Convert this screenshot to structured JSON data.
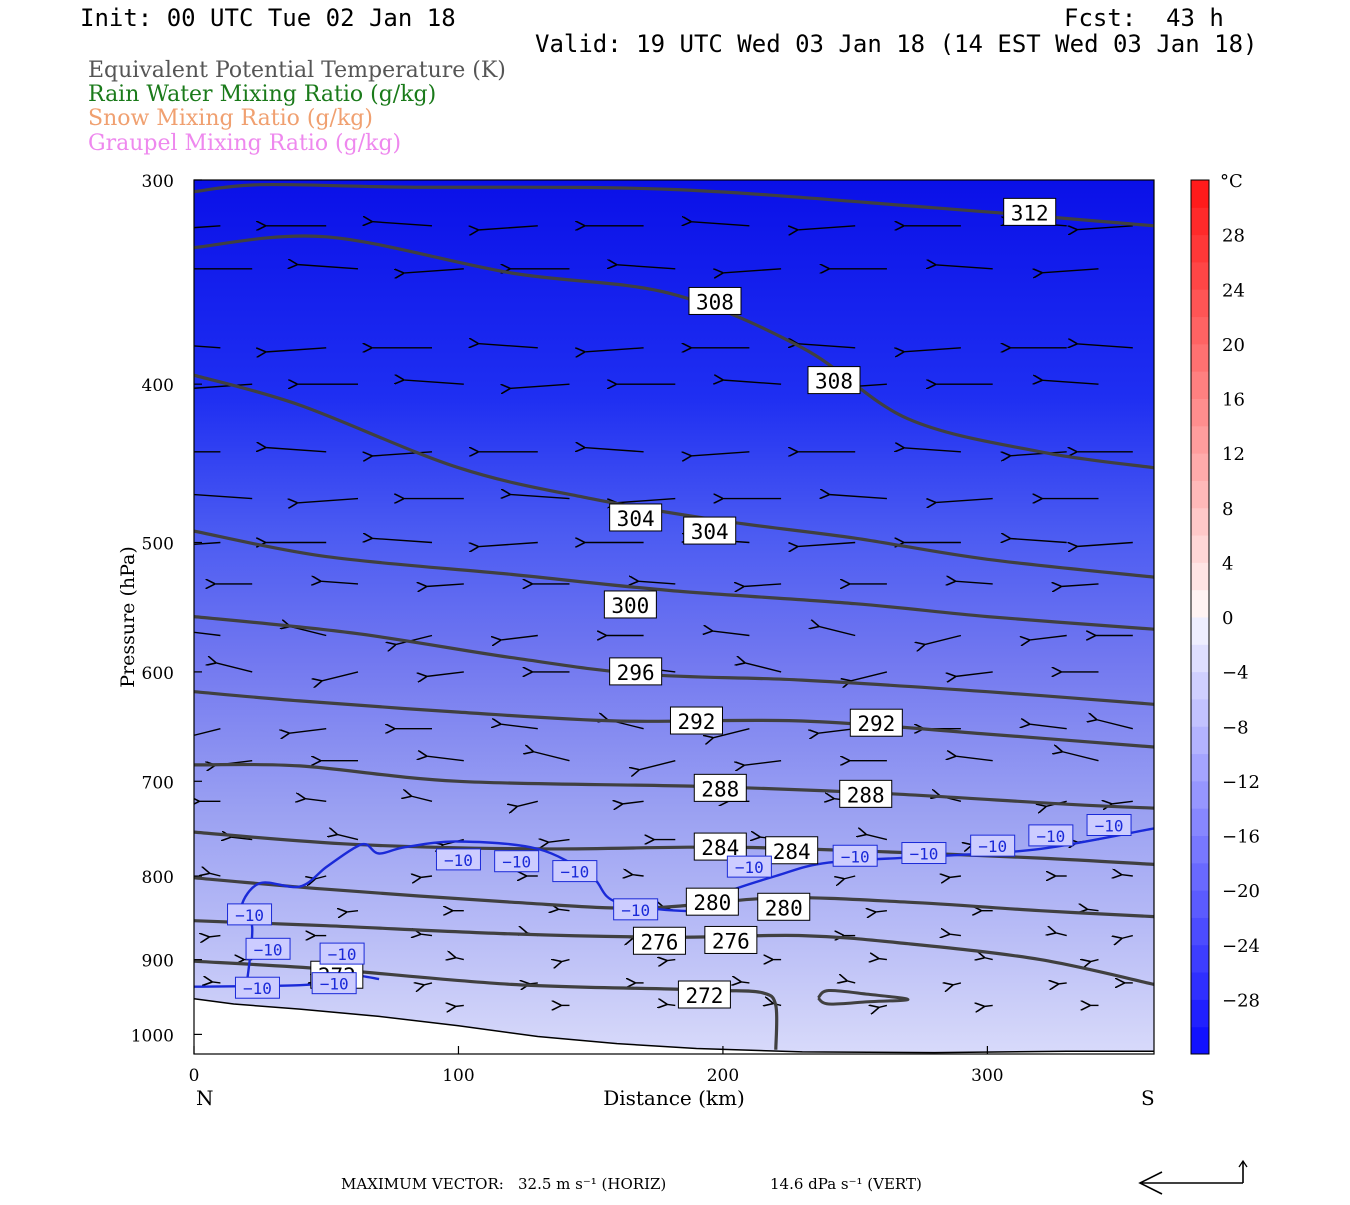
{
  "header": {
    "init": "Init: 00 UTC Tue 02 Jan 18",
    "fcst_label": "Fcst:",
    "fcst_value": "43 h",
    "valid": "Valid: 19 UTC Wed 03 Jan 18 (14 EST Wed 03 Jan 18)"
  },
  "fields": [
    {
      "label": "Equivalent Potential Temperature (K)",
      "color": "#555555"
    },
    {
      "label": "Rain Water Mixing Ratio (g/kg)",
      "color": "#1a7a1a"
    },
    {
      "label": "Snow Mixing Ratio (g/kg)",
      "color": "#f0a070"
    },
    {
      "label": "Graupel Mixing Ratio (g/kg)",
      "color": "#ee88ee"
    }
  ],
  "chart_data": {
    "type": "cross-section contour",
    "xlabel": "Distance (km)",
    "ylabel": "Pressure (hPa)",
    "xlim": [
      0,
      363
    ],
    "ylim": [
      1028,
      300
    ],
    "y_scale": "log",
    "x_ticks": [
      0,
      100,
      200,
      300
    ],
    "y_ticks": [
      300,
      400,
      500,
      600,
      700,
      800,
      900,
      1000
    ],
    "endpoint_left": "N",
    "endpoint_right": "S",
    "colorbar": {
      "unit": "°C",
      "ticks": [
        28,
        24,
        20,
        16,
        12,
        8,
        4,
        0,
        -4,
        -8,
        -12,
        -16,
        -20,
        -24,
        -28
      ],
      "range": [
        -32,
        32
      ]
    },
    "theta_e_contours": [
      {
        "value": 312,
        "points": [
          [
            0,
            305
          ],
          [
            25,
            302
          ],
          [
            80,
            303
          ],
          [
            180,
            304
          ],
          [
            280,
            312
          ],
          [
            363,
            320
          ]
        ]
      },
      {
        "value": 308,
        "points": [
          [
            0,
            330
          ],
          [
            50,
            325
          ],
          [
            120,
            342
          ],
          [
            180,
            352
          ],
          [
            230,
            380
          ],
          [
            270,
            420
          ],
          [
            320,
            440
          ],
          [
            363,
            450
          ]
        ]
      },
      {
        "value": 304,
        "points": [
          [
            0,
            395
          ],
          [
            40,
            412
          ],
          [
            100,
            450
          ],
          [
            150,
            470
          ],
          [
            200,
            485
          ],
          [
            250,
            497
          ],
          [
            300,
            512
          ],
          [
            363,
            525
          ]
        ]
      },
      {
        "value": 300,
        "points": [
          [
            0,
            492
          ],
          [
            50,
            510
          ],
          [
            120,
            523
          ],
          [
            180,
            535
          ],
          [
            250,
            545
          ],
          [
            300,
            555
          ],
          [
            363,
            565
          ]
        ]
      },
      {
        "value": 296,
        "points": [
          [
            0,
            555
          ],
          [
            60,
            568
          ],
          [
            120,
            588
          ],
          [
            170,
            602
          ],
          [
            230,
            607
          ],
          [
            300,
            617
          ],
          [
            363,
            628
          ]
        ]
      },
      {
        "value": 292,
        "points": [
          [
            0,
            617
          ],
          [
            40,
            625
          ],
          [
            100,
            635
          ],
          [
            160,
            643
          ],
          [
            230,
            643
          ],
          [
            300,
            655
          ],
          [
            363,
            667
          ]
        ]
      },
      {
        "value": 288,
        "points": [
          [
            0,
            684
          ],
          [
            40,
            685
          ],
          [
            100,
            700
          ],
          [
            190,
            705
          ],
          [
            260,
            712
          ],
          [
            330,
            723
          ],
          [
            363,
            727
          ]
        ]
      },
      {
        "value": 284,
        "points": [
          [
            0,
            752
          ],
          [
            60,
            765
          ],
          [
            130,
            770
          ],
          [
            200,
            768
          ],
          [
            260,
            773
          ],
          [
            320,
            780
          ],
          [
            363,
            787
          ]
        ]
      },
      {
        "value": 280,
        "points": [
          [
            0,
            802
          ],
          [
            50,
            815
          ],
          [
            120,
            830
          ],
          [
            170,
            837
          ],
          [
            220,
            825
          ],
          [
            270,
            830
          ],
          [
            320,
            840
          ],
          [
            363,
            847
          ]
        ]
      },
      {
        "value": 276,
        "points": [
          [
            0,
            852
          ],
          [
            50,
            858
          ],
          [
            120,
            868
          ],
          [
            180,
            872
          ],
          [
            230,
            870
          ],
          [
            270,
            880
          ],
          [
            320,
            900
          ],
          [
            363,
            932
          ]
        ]
      },
      {
        "value": 272,
        "points": [
          [
            0,
            902
          ],
          [
            50,
            912
          ],
          [
            120,
            932
          ],
          [
            180,
            938
          ],
          [
            200,
            940
          ],
          [
            215,
            943
          ],
          [
            220,
            960
          ],
          [
            220,
            1022
          ]
        ]
      }
    ],
    "temperature_contours": [
      {
        "value": -10,
        "points": [
          [
            0,
            935
          ],
          [
            40,
            933
          ],
          [
            55,
            927
          ],
          [
            60,
            920
          ],
          [
            70,
            925
          ]
        ]
      },
      {
        "value": -10,
        "points": [
          [
            20,
            930
          ],
          [
            22,
            860
          ],
          [
            18,
            835
          ],
          [
            25,
            808
          ],
          [
            40,
            812
          ],
          [
            50,
            790
          ],
          [
            60,
            770
          ],
          [
            65,
            765
          ],
          [
            70,
            775
          ],
          [
            80,
            768
          ],
          [
            100,
            762
          ],
          [
            130,
            770
          ],
          [
            150,
            800
          ],
          [
            160,
            830
          ],
          [
            190,
            840
          ],
          [
            200,
            820
          ],
          [
            220,
            800
          ],
          [
            240,
            785
          ],
          [
            280,
            778
          ],
          [
            320,
            770
          ],
          [
            363,
            748
          ]
        ]
      }
    ],
    "contour_labels": [
      312,
      308,
      308,
      304,
      304,
      300,
      296,
      292,
      292,
      288,
      288,
      284,
      284,
      280,
      280,
      276,
      276,
      272,
      272
    ],
    "maximum_vector": {
      "label": "MAXIMUM VECTOR:",
      "horizontal": "32.5 m s⁻¹ (HORIZ)",
      "vertical": "14.6 dPa s⁻¹ (VERT)"
    }
  }
}
